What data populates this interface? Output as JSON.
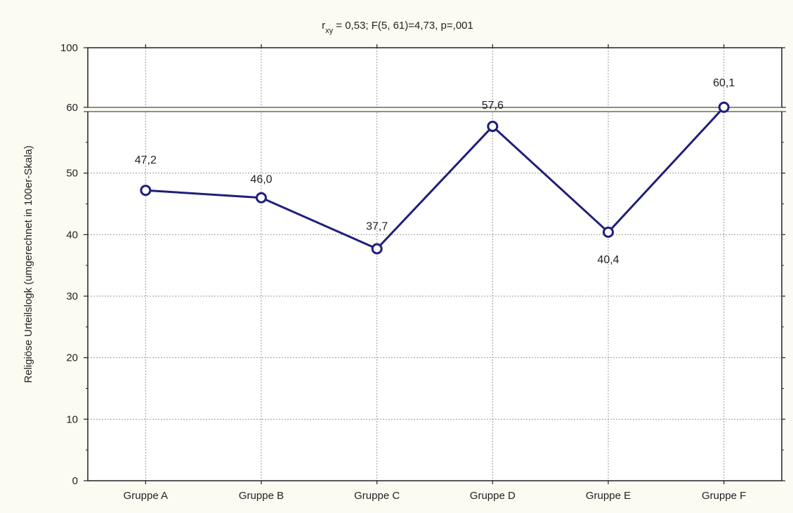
{
  "colors": {
    "background": "#fbfbf1",
    "plot_background": "#ffffff",
    "series_line": "#1f1f7a",
    "grid": "#9a9a9a",
    "axis": "#222222"
  },
  "chart_data": {
    "type": "line",
    "title": {
      "r_main": "r",
      "r_sub": "xy",
      "rest": " = 0,53; F(5, 61)=4,73, p=,001"
    },
    "xlabel": "",
    "ylabel": "Religiöse Urteilslogk (umgerechnet in 100er-Skala)",
    "categories": [
      "Gruppe A",
      "Gruppe B",
      "Gruppe C",
      "Gruppe D",
      "Gruppe E",
      "Gruppe F"
    ],
    "series": [
      {
        "values": [
          47.2,
          46.0,
          37.7,
          57.6,
          40.4,
          60.1
        ],
        "labels": [
          "47,2",
          "46,0",
          "37,7",
          "57,6",
          "40,4",
          "60,1"
        ],
        "marker": "circle"
      }
    ],
    "y_ticks": [
      0,
      10,
      20,
      30,
      40,
      50,
      60,
      100
    ],
    "y_tick_labels": [
      "0",
      "10",
      "20",
      "30",
      "40",
      "50",
      "60",
      "100"
    ],
    "ylim": [
      0,
      100
    ],
    "y_axis_break": [
      60,
      100
    ],
    "grid": true,
    "legend": "none"
  }
}
